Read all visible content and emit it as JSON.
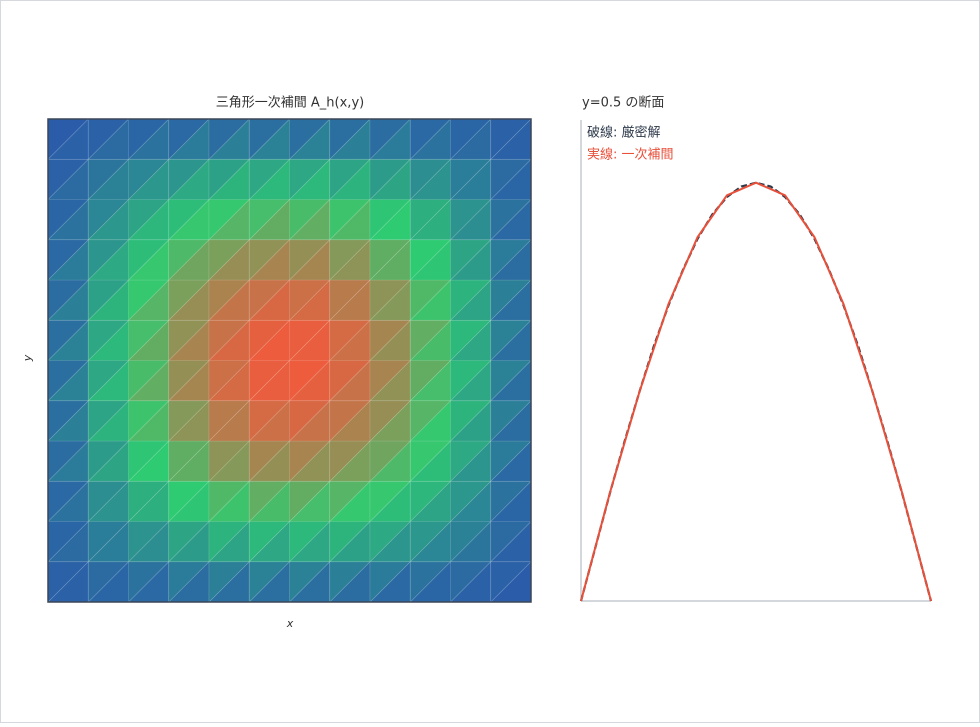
{
  "chart_data": [
    {
      "type": "trimesh",
      "title": "三角形一次補間  A_h(x,y)",
      "x_label": "x",
      "y_label": "y",
      "zlim": [
        0,
        1
      ],
      "colorscale": [
        "#2a5caa",
        "#2ecc71",
        "#f5573b"
      ],
      "z": [
        [
          0,
          0,
          0,
          0,
          0,
          0,
          0,
          0,
          0,
          0,
          0,
          0,
          0
        ],
        [
          0,
          0.07,
          0.13,
          0.18,
          0.23,
          0.25,
          0.26,
          0.25,
          0.23,
          0.18,
          0.13,
          0.07,
          0
        ],
        [
          0,
          0.13,
          0.25,
          0.36,
          0.44,
          0.49,
          0.5,
          0.49,
          0.44,
          0.36,
          0.25,
          0.13,
          0
        ],
        [
          0,
          0.18,
          0.36,
          0.5,
          0.62,
          0.69,
          0.71,
          0.69,
          0.62,
          0.5,
          0.36,
          0.18,
          0
        ],
        [
          0,
          0.23,
          0.44,
          0.62,
          0.76,
          0.84,
          0.87,
          0.84,
          0.76,
          0.62,
          0.44,
          0.23,
          0
        ],
        [
          0,
          0.25,
          0.49,
          0.69,
          0.84,
          0.94,
          0.97,
          0.94,
          0.84,
          0.69,
          0.49,
          0.25,
          0
        ],
        [
          0,
          0.26,
          0.5,
          0.71,
          0.87,
          0.97,
          1,
          0.97,
          0.87,
          0.71,
          0.5,
          0.26,
          0
        ],
        [
          0,
          0.25,
          0.49,
          0.69,
          0.84,
          0.94,
          0.97,
          0.94,
          0.84,
          0.69,
          0.49,
          0.25,
          0
        ],
        [
          0,
          0.23,
          0.44,
          0.62,
          0.76,
          0.84,
          0.87,
          0.84,
          0.76,
          0.62,
          0.44,
          0.23,
          0
        ],
        [
          0,
          0.18,
          0.36,
          0.5,
          0.62,
          0.69,
          0.71,
          0.69,
          0.62,
          0.5,
          0.36,
          0.18,
          0
        ],
        [
          0,
          0.13,
          0.25,
          0.36,
          0.44,
          0.49,
          0.5,
          0.49,
          0.44,
          0.36,
          0.25,
          0.13,
          0
        ],
        [
          0,
          0.07,
          0.13,
          0.18,
          0.23,
          0.25,
          0.26,
          0.25,
          0.23,
          0.18,
          0.13,
          0.07,
          0
        ],
        [
          0,
          0,
          0,
          0,
          0,
          0,
          0,
          0,
          0,
          0,
          0,
          0,
          0
        ]
      ]
    },
    {
      "type": "line",
      "title": "y=0.5 の断面",
      "xlim": [
        0,
        1
      ],
      "ylim": [
        0,
        1.15
      ],
      "series": [
        {
          "name": "破線: 厳密解",
          "color": "#2f3b4c",
          "dash": true,
          "x": [
            0,
            0.042,
            0.083,
            0.125,
            0.167,
            0.208,
            0.25,
            0.292,
            0.333,
            0.375,
            0.417,
            0.458,
            0.5,
            0.542,
            0.583,
            0.625,
            0.667,
            0.708,
            0.75,
            0.792,
            0.833,
            0.875,
            0.917,
            0.958,
            1
          ],
          "values": [
            0,
            0.131,
            0.259,
            0.383,
            0.5,
            0.609,
            0.707,
            0.793,
            0.866,
            0.924,
            0.966,
            0.991,
            1,
            0.991,
            0.966,
            0.924,
            0.866,
            0.793,
            0.707,
            0.609,
            0.5,
            0.383,
            0.259,
            0.131,
            0
          ]
        },
        {
          "name": "実線: 一次補間",
          "color": "#e8503a",
          "dash": false,
          "x": [
            0,
            0.083,
            0.167,
            0.25,
            0.333,
            0.417,
            0.5,
            0.583,
            0.667,
            0.75,
            0.833,
            0.917,
            1
          ],
          "values": [
            0,
            0.26,
            0.5,
            0.71,
            0.87,
            0.97,
            1,
            0.97,
            0.87,
            0.71,
            0.5,
            0.26,
            0
          ]
        }
      ]
    }
  ]
}
